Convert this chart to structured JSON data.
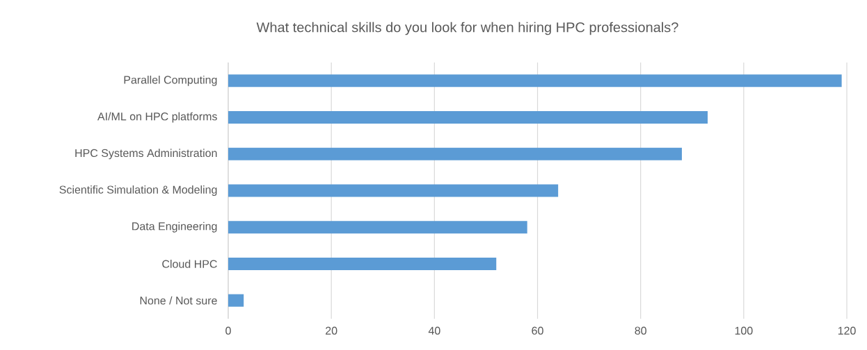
{
  "chart_data": {
    "type": "bar",
    "orientation": "horizontal",
    "title": "What technical skills do you look for when hiring HPC professionals?",
    "categories": [
      "Parallel Computing",
      "AI/ML on HPC platforms",
      "HPC Systems Administration",
      "Scientific Simulation & Modeling",
      "Data Engineering",
      "Cloud HPC",
      "None / Not sure"
    ],
    "values": [
      119,
      93,
      88,
      64,
      58,
      52,
      3
    ],
    "color": "#5b9bd5",
    "xlim": [
      0,
      120
    ],
    "xticks": [
      0,
      20,
      40,
      60,
      80,
      100,
      120
    ],
    "grid": "x"
  }
}
